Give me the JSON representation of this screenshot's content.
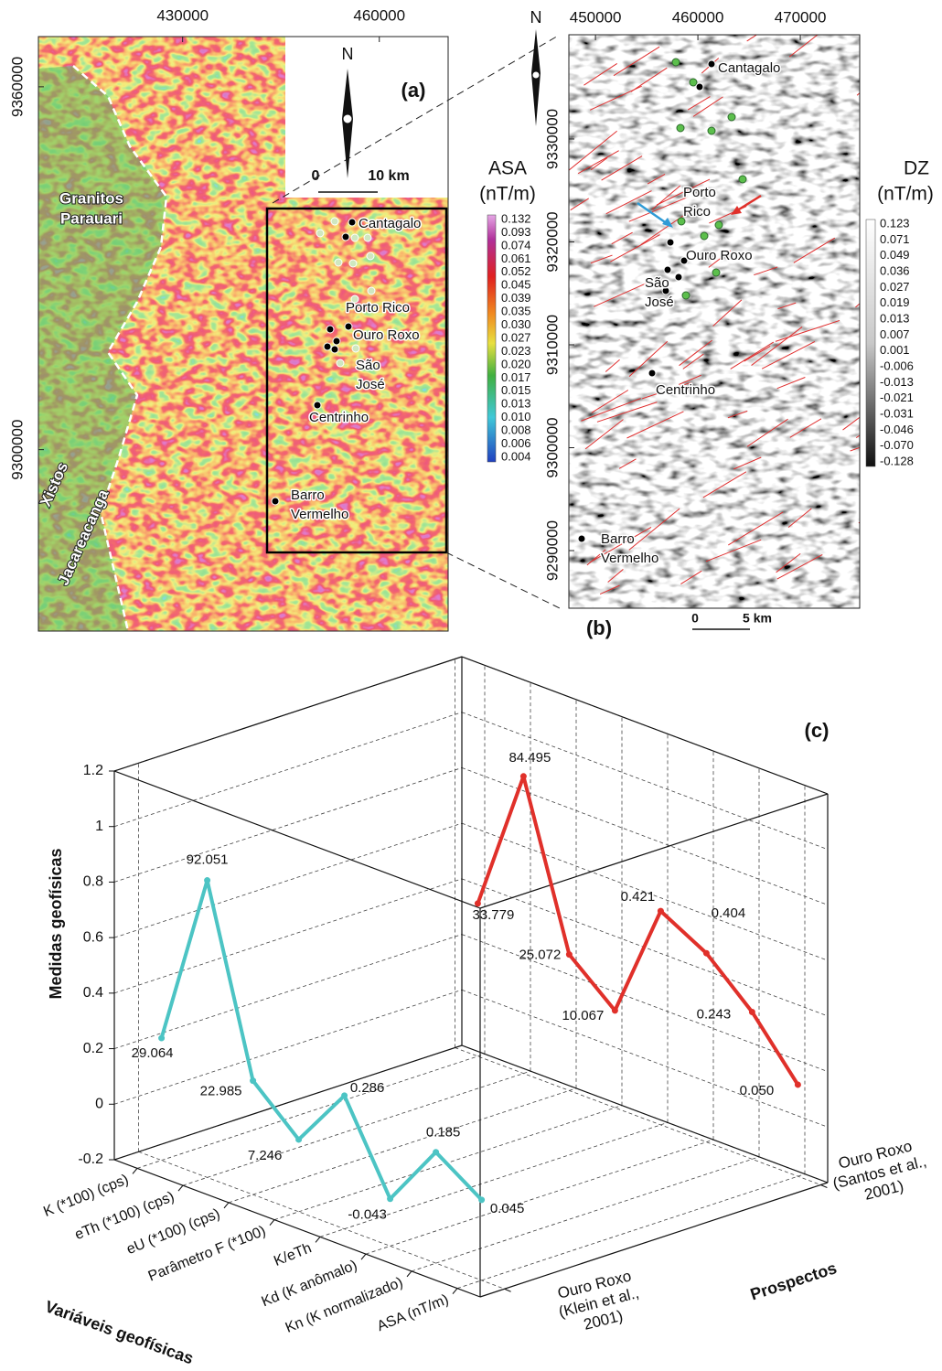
{
  "chart_data": [
    {
      "type": "map",
      "label": "(a)",
      "xlim": [
        408000,
        470500
      ],
      "xticks": [
        430000,
        460000
      ],
      "ylim": [
        9270000,
        9368300
      ],
      "yticks": [
        9360000,
        9300000
      ],
      "north": "N",
      "scale": [
        "0",
        "10 km"
      ],
      "units": [
        [
          "Granitos",
          "Parauari"
        ],
        [
          "Xistos",
          "Jacareacanga"
        ]
      ],
      "sites": [
        [
          "Cantagalo"
        ],
        [
          "Porto Rico"
        ],
        [
          "Ouro Roxo"
        ],
        [
          "São",
          "José"
        ],
        [
          "Centrinho"
        ],
        [
          "Barro",
          "Vermelho"
        ]
      ],
      "colorbar": {
        "title": "ASA",
        "unit": "(nT/m)",
        "ticks": [
          0.132,
          0.093,
          0.074,
          0.061,
          0.052,
          0.045,
          0.039,
          0.035,
          {
            "value": 0.03,
            "label": "0.030"
          },
          0.027,
          0.023,
          {
            "value": 0.02,
            "label": "0.020"
          },
          0.017,
          0.015,
          0.013,
          {
            "value": 0.01,
            "label": "0.010"
          },
          0.008,
          0.006,
          0.004
        ]
      }
    },
    {
      "type": "map",
      "label": "(b)",
      "xlim": [
        447400,
        475800
      ],
      "xticks": [
        450000,
        460000,
        470000
      ],
      "ylim": [
        9284400,
        9340130
      ],
      "yticks": [
        9330000,
        9320000,
        9310000,
        9300000,
        9290000
      ],
      "north": "N",
      "scale": [
        "0",
        "5 km"
      ],
      "sites": [
        [
          "Cantagalo"
        ],
        [
          "Porto",
          "Rico"
        ],
        [
          "Ouro Roxo"
        ],
        [
          "São",
          "José"
        ],
        [
          "Centrinho"
        ],
        [
          "Barro",
          "Vermelho"
        ]
      ],
      "colorbar": {
        "title": "DZ",
        "unit": "(nT/m)",
        "ticks": [
          0.123,
          0.071,
          0.049,
          0.036,
          0.027,
          0.019,
          0.013,
          0.007,
          0.001,
          -0.006,
          -0.013,
          -0.021,
          -0.031,
          -0.046,
          {
            "value": -0.07,
            "label": "-0.070"
          },
          -0.128
        ]
      }
    },
    {
      "type": "line3d",
      "label": "(c)",
      "zlabel": "Medidas geofísicas",
      "xlabel": "Variáveis geofísicas",
      "ylabel": "Prospectos",
      "zlim": [
        -0.2,
        1.2
      ],
      "zticks": [
        -0.2,
        0,
        0.2,
        0.4,
        0.6,
        0.8,
        1,
        1.2
      ],
      "categories": [
        "K (*100) (cps)",
        "eTh (*100) (cps)",
        "eU (*100) (cps)",
        "Parâmetro F (*100)",
        "K/eTh",
        "Kd (K anômalo)",
        "Kn (K normalizado)",
        "ASA (nT/m)"
      ],
      "ycategories": [
        [
          "Ouro Roxo",
          "(Klein et al.,",
          "2001)"
        ],
        [
          "Ouro Roxo",
          "(Santos et al.,",
          "2001)"
        ]
      ],
      "ycategory_colors": [
        "#2b2b8c",
        "#a3221c"
      ],
      "series": [
        {
          "color": "#4cc4c4",
          "label_color": "#2f9bd6",
          "values": [
            0.24,
            0.87,
            0.21,
            0.06,
            0.28,
            -0.03,
            0.2,
            0.09
          ],
          "annotations": [
            "29.064",
            "92.051",
            "22.985",
            "7.246",
            "0.286",
            "-0.043",
            "0.185",
            "0.045"
          ]
        },
        {
          "color": "#e0302a",
          "label_color": "#d83a2a",
          "values": [
            0.35,
            0.87,
            0.29,
            0.15,
            0.57,
            0.48,
            0.33,
            0.13
          ],
          "annotations": [
            "33.779",
            "84.495",
            "25.072",
            "10.067",
            "0.421",
            "0.404",
            "0.243",
            "0.050"
          ]
        }
      ]
    }
  ]
}
